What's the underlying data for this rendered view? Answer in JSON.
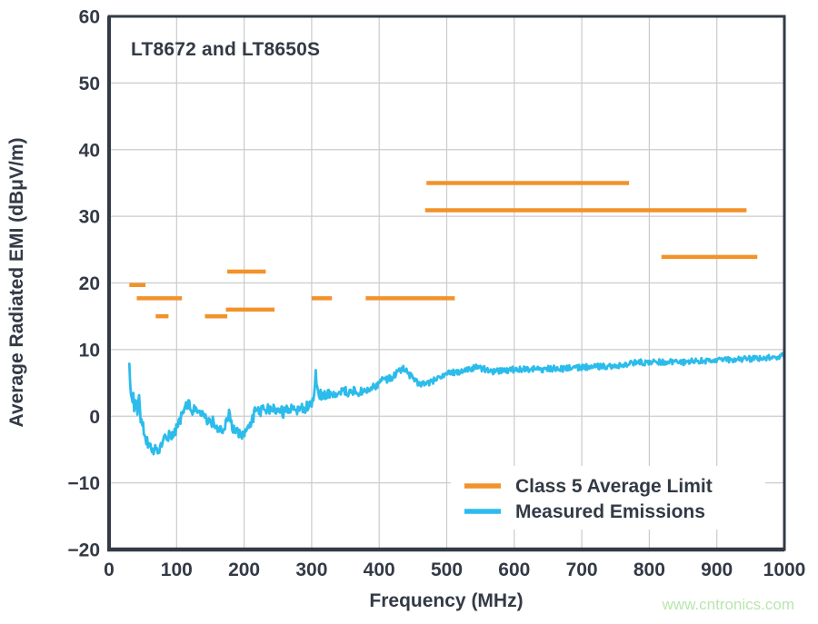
{
  "page": {
    "background": "#FFFFFF"
  },
  "colors": {
    "ink": "#333A46",
    "grid": "#C9CBCD",
    "plot_background": "#FFFFFF"
  },
  "watermark": {
    "text": "www.cntronics.com",
    "color": "#B9E6AE"
  },
  "chart_data": {
    "type": "line",
    "title": "LT8672 and LT8650S",
    "xlabel": "Frequency (MHz)",
    "ylabel": "Average Radiated EMI (dBμV/m)",
    "xlim": [
      0,
      1000
    ],
    "ylim": [
      -20,
      60
    ],
    "x_ticks": [
      0,
      100,
      200,
      300,
      400,
      500,
      600,
      700,
      800,
      900,
      1000
    ],
    "y_ticks": [
      -20,
      -10,
      0,
      10,
      20,
      30,
      40,
      50,
      60
    ],
    "grid": true,
    "legend_position": "bottom-right",
    "series": [
      {
        "name": "Class 5 Average Limit",
        "kind": "limit-segments",
        "color": "#F2922A",
        "segments": [
          {
            "from": 30,
            "to": 54,
            "level": 19.7
          },
          {
            "from": 41,
            "to": 108,
            "level": 17.7
          },
          {
            "from": 69,
            "to": 88,
            "level": 15.0
          },
          {
            "from": 142,
            "to": 175,
            "level": 15.0
          },
          {
            "from": 173,
            "to": 245,
            "level": 16.0
          },
          {
            "from": 175,
            "to": 232,
            "level": 21.7
          },
          {
            "from": 300,
            "to": 330,
            "level": 17.7
          },
          {
            "from": 380,
            "to": 512,
            "level": 17.7
          },
          {
            "from": 470,
            "to": 770,
            "level": 35.0
          },
          {
            "from": 468,
            "to": 944,
            "level": 30.9
          },
          {
            "from": 818,
            "to": 960,
            "level": 23.9
          }
        ]
      },
      {
        "name": "Measured Emissions",
        "kind": "noisy-line",
        "color": "#2CBCEB",
        "noise": {
          "start_amp": 1.1,
          "low_amp": 0.8,
          "high_amp": 0.45,
          "blend_from_mhz": 320,
          "blend_to_mhz": 460
        },
        "points": [
          [
            30,
            6.9
          ],
          [
            31,
            5.2
          ],
          [
            32,
            3.6
          ],
          [
            33,
            2.4
          ],
          [
            34,
            3.2
          ],
          [
            35,
            2.0
          ],
          [
            36,
            3.0
          ],
          [
            37,
            1.6
          ],
          [
            38,
            2.8
          ],
          [
            39,
            1.4
          ],
          [
            40,
            3.4
          ],
          [
            42,
            1.2
          ],
          [
            44,
            3.3
          ],
          [
            46,
            0.6
          ],
          [
            48,
            -0.6
          ],
          [
            50,
            -1.5
          ],
          [
            52,
            -2.3
          ],
          [
            55,
            -3.2
          ],
          [
            58,
            -4.0
          ],
          [
            62,
            -4.6
          ],
          [
            66,
            -5.0
          ],
          [
            70,
            -5.1
          ],
          [
            74,
            -4.9
          ],
          [
            78,
            -4.4
          ],
          [
            82,
            -3.6
          ],
          [
            86,
            -3.2
          ],
          [
            90,
            -2.9
          ],
          [
            94,
            -2.6
          ],
          [
            98,
            -2.2
          ],
          [
            102,
            -1.4
          ],
          [
            106,
            -0.4
          ],
          [
            110,
            0.6
          ],
          [
            114,
            1.3
          ],
          [
            118,
            1.9
          ],
          [
            121,
            1.3
          ],
          [
            124,
            0.9
          ],
          [
            127,
            1.4
          ],
          [
            130,
            0.8
          ],
          [
            133,
            0.2
          ],
          [
            136,
            -0.1
          ],
          [
            139,
            0.3
          ],
          [
            142,
            -0.2
          ],
          [
            145,
            -0.6
          ],
          [
            148,
            -0.9
          ],
          [
            151,
            -1.1
          ],
          [
            154,
            -0.8
          ],
          [
            157,
            -1.2
          ],
          [
            160,
            -1.5
          ],
          [
            163,
            -1.7
          ],
          [
            166,
            -1.9
          ],
          [
            169,
            -2.0
          ],
          [
            172,
            -1.2
          ],
          [
            175,
            -0.3
          ],
          [
            178,
            0.6
          ],
          [
            180,
            -0.6
          ],
          [
            183,
            -1.6
          ],
          [
            186,
            -2.1
          ],
          [
            190,
            -2.5
          ],
          [
            194,
            -2.7
          ],
          [
            198,
            -2.6
          ],
          [
            202,
            -2.4
          ],
          [
            206,
            -2.0
          ],
          [
            210,
            -1.2
          ],
          [
            213,
            -0.3
          ],
          [
            216,
            0.6
          ],
          [
            219,
            0.9
          ],
          [
            222,
            0.4
          ],
          [
            225,
            0.9
          ],
          [
            228,
            1.1
          ],
          [
            231,
            0.5
          ],
          [
            234,
            1.1
          ],
          [
            237,
            1.3
          ],
          [
            240,
            0.7
          ],
          [
            243,
            1.1
          ],
          [
            246,
            0.6
          ],
          [
            249,
            0.9
          ],
          [
            252,
            1.3
          ],
          [
            255,
            0.8
          ],
          [
            258,
            0.4
          ],
          [
            261,
            0.7
          ],
          [
            264,
            1.0
          ],
          [
            267,
            0.6
          ],
          [
            270,
            1.2
          ],
          [
            273,
            0.9
          ],
          [
            276,
            1.3
          ],
          [
            279,
            1.0
          ],
          [
            282,
            1.4
          ],
          [
            285,
            1.1
          ],
          [
            288,
            1.5
          ],
          [
            291,
            1.2
          ],
          [
            294,
            1.6
          ],
          [
            297,
            1.9
          ],
          [
            300,
            1.8
          ],
          [
            302,
            2.2
          ],
          [
            304,
            3.6
          ],
          [
            306,
            6.5
          ],
          [
            308,
            4.4
          ],
          [
            310,
            3.2
          ],
          [
            313,
            3.4
          ],
          [
            316,
            3.1
          ],
          [
            320,
            3.3
          ],
          [
            325,
            3.5
          ],
          [
            330,
            3.4
          ],
          [
            335,
            3.6
          ],
          [
            340,
            3.4
          ],
          [
            345,
            3.6
          ],
          [
            350,
            3.7
          ],
          [
            355,
            3.5
          ],
          [
            360,
            3.7
          ],
          [
            365,
            3.8
          ],
          [
            370,
            3.7
          ],
          [
            375,
            3.9
          ],
          [
            380,
            4.0
          ],
          [
            385,
            4.2
          ],
          [
            390,
            4.4
          ],
          [
            395,
            4.6
          ],
          [
            400,
            5.0
          ],
          [
            405,
            5.3
          ],
          [
            410,
            5.4
          ],
          [
            415,
            5.6
          ],
          [
            420,
            6.0
          ],
          [
            425,
            6.5
          ],
          [
            430,
            7.0
          ],
          [
            435,
            7.1
          ],
          [
            440,
            6.8
          ],
          [
            445,
            6.2
          ],
          [
            450,
            5.6
          ],
          [
            455,
            5.1
          ],
          [
            460,
            4.9
          ],
          [
            465,
            4.8
          ],
          [
            470,
            4.9
          ],
          [
            475,
            5.0
          ],
          [
            480,
            5.3
          ],
          [
            485,
            5.7
          ],
          [
            490,
            6.0
          ],
          [
            495,
            6.2
          ],
          [
            500,
            6.4
          ],
          [
            505,
            6.5
          ],
          [
            510,
            6.6
          ],
          [
            515,
            6.6
          ],
          [
            520,
            6.7
          ],
          [
            525,
            6.9
          ],
          [
            530,
            7.0
          ],
          [
            535,
            7.1
          ],
          [
            540,
            7.2
          ],
          [
            545,
            7.3
          ],
          [
            550,
            7.2
          ],
          [
            555,
            7.1
          ],
          [
            560,
            6.9
          ],
          [
            565,
            6.8
          ],
          [
            570,
            6.7
          ],
          [
            575,
            6.8
          ],
          [
            580,
            6.9
          ],
          [
            585,
            7.0
          ],
          [
            590,
            6.9
          ],
          [
            595,
            7.0
          ],
          [
            600,
            7.0
          ],
          [
            610,
            7.1
          ],
          [
            620,
            7.0
          ],
          [
            630,
            7.1
          ],
          [
            640,
            7.0
          ],
          [
            650,
            7.1
          ],
          [
            660,
            7.2
          ],
          [
            670,
            7.1
          ],
          [
            680,
            7.2
          ],
          [
            690,
            7.3
          ],
          [
            700,
            7.3
          ],
          [
            710,
            7.4
          ],
          [
            720,
            7.4
          ],
          [
            730,
            7.5
          ],
          [
            740,
            7.5
          ],
          [
            750,
            7.6
          ],
          [
            760,
            7.6
          ],
          [
            768,
            7.8
          ],
          [
            772,
            8.3
          ],
          [
            776,
            8.1
          ],
          [
            780,
            8.0
          ],
          [
            790,
            8.1
          ],
          [
            800,
            8.0
          ],
          [
            810,
            8.1
          ],
          [
            820,
            8.2
          ],
          [
            830,
            8.1
          ],
          [
            840,
            8.2
          ],
          [
            850,
            8.1
          ],
          [
            860,
            8.3
          ],
          [
            870,
            8.2
          ],
          [
            880,
            8.3
          ],
          [
            890,
            8.4
          ],
          [
            900,
            8.5
          ],
          [
            910,
            8.4
          ],
          [
            920,
            8.5
          ],
          [
            930,
            8.5
          ],
          [
            940,
            8.6
          ],
          [
            950,
            8.6
          ],
          [
            960,
            8.7
          ],
          [
            970,
            8.7
          ],
          [
            980,
            8.8
          ],
          [
            990,
            8.9
          ],
          [
            1000,
            9.1
          ]
        ]
      }
    ]
  }
}
